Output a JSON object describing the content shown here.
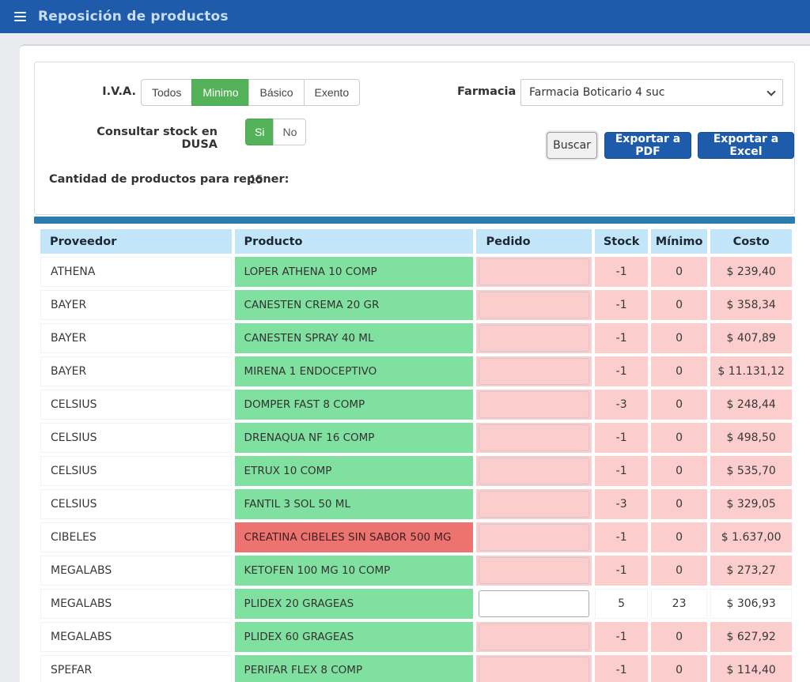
{
  "header": {
    "title": "Reposición de productos"
  },
  "filters": {
    "iva": {
      "label": "I.V.A.",
      "options": [
        {
          "label": "Todos",
          "selected": false
        },
        {
          "label": "Minimo",
          "selected": true
        },
        {
          "label": "Básico",
          "selected": false
        },
        {
          "label": "Exento",
          "selected": false
        }
      ]
    },
    "farmacia": {
      "label": "Farmacia",
      "value": "Farmacia Boticario 4 suc"
    },
    "dusa": {
      "label": "Consultar stock en DUSA",
      "options": [
        {
          "label": "Si",
          "selected": true
        },
        {
          "label": "No",
          "selected": false
        }
      ]
    },
    "actions": {
      "buscar": "Buscar",
      "export_pdf": "Exportar a PDF",
      "export_excel": "Exportar a Excel"
    },
    "count": {
      "label": "Cantidad de productos para reponer:",
      "value": "15"
    }
  },
  "table": {
    "columns": [
      "Proveedor",
      "Producto",
      "Pedido",
      "Stock",
      "Mínimo",
      "Costo"
    ],
    "rows": [
      {
        "proveedor": "ATHENA",
        "producto": "LOPER ATHENA 10 COMP",
        "estado": "green",
        "pedido": "",
        "stock": "-1",
        "minimo": "0",
        "costo": "$ 239,40",
        "alert": true
      },
      {
        "proveedor": "BAYER",
        "producto": "CANESTEN CREMA 20 GR",
        "estado": "green",
        "pedido": "",
        "stock": "-1",
        "minimo": "0",
        "costo": "$ 358,34",
        "alert": true
      },
      {
        "proveedor": "BAYER",
        "producto": "CANESTEN SPRAY 40 ML",
        "estado": "green",
        "pedido": "",
        "stock": "-1",
        "minimo": "0",
        "costo": "$ 407,89",
        "alert": true
      },
      {
        "proveedor": "BAYER",
        "producto": "MIRENA 1 ENDOCEPTIVO",
        "estado": "green",
        "pedido": "",
        "stock": "-1",
        "minimo": "0",
        "costo": "$ 11.131,12",
        "alert": true
      },
      {
        "proveedor": "CELSIUS",
        "producto": "DOMPER FAST 8 COMP",
        "estado": "green",
        "pedido": "",
        "stock": "-3",
        "minimo": "0",
        "costo": "$ 248,44",
        "alert": true
      },
      {
        "proveedor": "CELSIUS",
        "producto": "DRENAQUA NF 16 COMP",
        "estado": "green",
        "pedido": "",
        "stock": "-1",
        "minimo": "0",
        "costo": "$ 498,50",
        "alert": true
      },
      {
        "proveedor": "CELSIUS",
        "producto": "ETRUX 10 COMP",
        "estado": "green",
        "pedido": "",
        "stock": "-1",
        "minimo": "0",
        "costo": "$ 535,70",
        "alert": true
      },
      {
        "proveedor": "CELSIUS",
        "producto": "FANTIL 3 SOL 50 ML",
        "estado": "green",
        "pedido": "",
        "stock": "-3",
        "minimo": "0",
        "costo": "$ 329,05",
        "alert": true
      },
      {
        "proveedor": "CIBELES",
        "producto": "CREATINA CIBELES SIN SABOR 500 MG",
        "estado": "red",
        "pedido": "",
        "stock": "-1",
        "minimo": "0",
        "costo": "$ 1.637,00",
        "alert": true
      },
      {
        "proveedor": "MEGALABS",
        "producto": "KETOFEN 100 MG 10 COMP",
        "estado": "green",
        "pedido": "",
        "stock": "-1",
        "minimo": "0",
        "costo": "$ 273,27",
        "alert": true
      },
      {
        "proveedor": "MEGALABS",
        "producto": "PLIDEX 20 GRAGEAS",
        "estado": "green",
        "pedido": "",
        "stock": "5",
        "minimo": "23",
        "costo": "$ 306,93",
        "alert": false
      },
      {
        "proveedor": "MEGALABS",
        "producto": "PLIDEX 60 GRAGEAS",
        "estado": "green",
        "pedido": "",
        "stock": "-1",
        "minimo": "0",
        "costo": "$ 627,92",
        "alert": true
      },
      {
        "proveedor": "SPEFAR",
        "producto": "PERIFAR FLEX 8 COMP",
        "estado": "green",
        "pedido": "",
        "stock": "-1",
        "minimo": "0",
        "costo": "$ 114,40",
        "alert": true
      }
    ]
  },
  "colors": {
    "topbar_blue": "#1e5cab",
    "divider_blue": "#2a7cb0",
    "header_cell_blue": "#c3e5fa",
    "row_green": "#7fe0a0",
    "row_red": "#ed7370",
    "alert_pink": "#fbcdcd",
    "selected_green": "#54b25a"
  }
}
